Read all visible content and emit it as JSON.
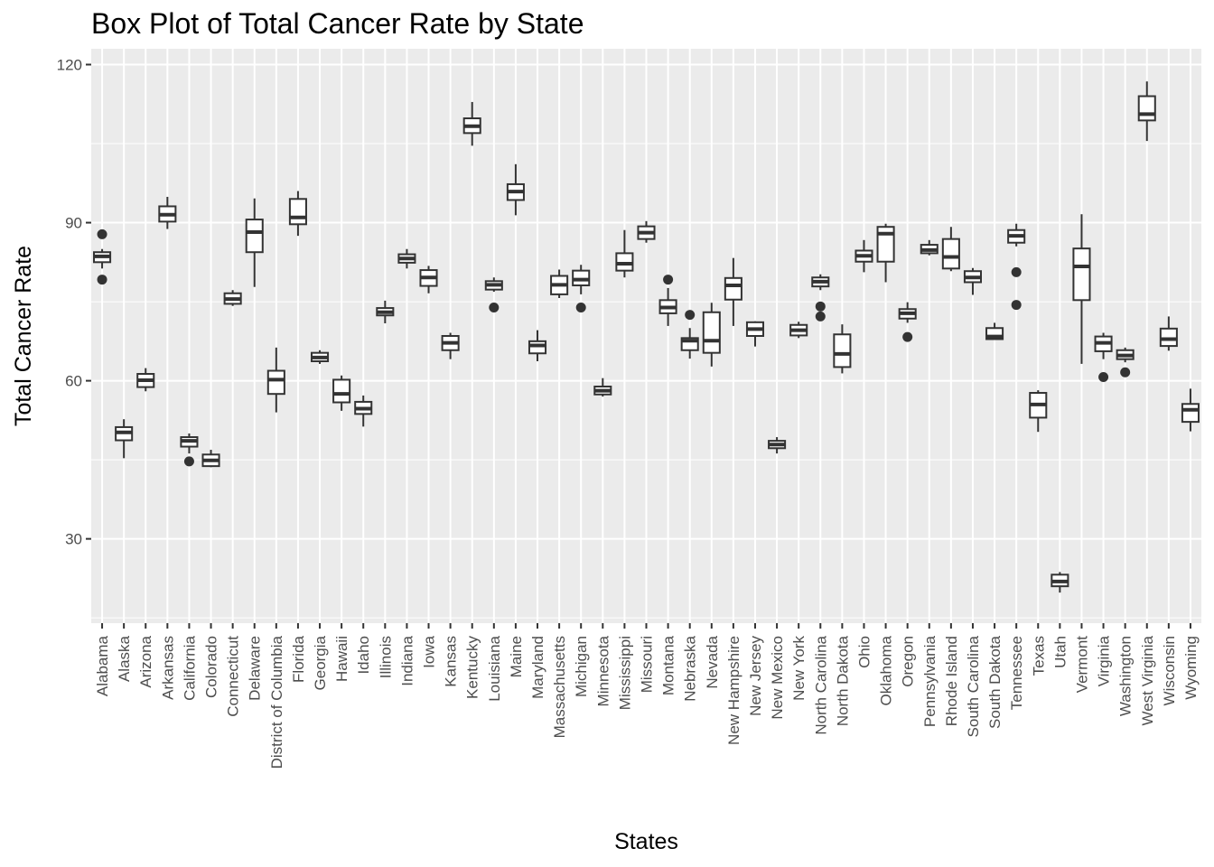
{
  "chart_data": {
    "type": "box",
    "title": "Box Plot of Total Cancer Rate by State",
    "xlabel": "States",
    "ylabel": "Total Cancer Rate",
    "ylim": [
      14,
      123
    ],
    "yticks": [
      30,
      60,
      90,
      120
    ],
    "grid": true,
    "legend": "none",
    "colors": {
      "panel": "#ebebeb",
      "grid": "#ffffff",
      "box_fill": "#ffffff",
      "box_line": "#333333",
      "outlier": "#333333",
      "tick_text": "#4d4d4d"
    },
    "categories": [
      "Alabama",
      "Alaska",
      "Arizona",
      "Arkansas",
      "California",
      "Colorado",
      "Connecticut",
      "Delaware",
      "District of Columbia",
      "Florida",
      "Georgia",
      "Hawaii",
      "Idaho",
      "Illinois",
      "Indiana",
      "Iowa",
      "Kansas",
      "Kentucky",
      "Louisiana",
      "Maine",
      "Maryland",
      "Massachusetts",
      "Michigan",
      "Minnesota",
      "Mississippi",
      "Missouri",
      "Montana",
      "Nebraska",
      "Nevada",
      "New Hampshire",
      "New Jersey",
      "New Mexico",
      "New York",
      "North Carolina",
      "North Dakota",
      "Ohio",
      "Oklahoma",
      "Oregon",
      "Pennsylvania",
      "Rhode Island",
      "South Carolina",
      "South Dakota",
      "Tennessee",
      "Texas",
      "Utah",
      "Vermont",
      "Virginia",
      "Washington",
      "West Virginia",
      "Wisconsin",
      "Wyoming"
    ],
    "boxes": [
      {
        "min": 81.3,
        "q1": 82.5,
        "median": 83.6,
        "q3": 84.4,
        "max": 85.0,
        "outliers": [
          87.8,
          79.2
        ]
      },
      {
        "min": 45.3,
        "q1": 48.7,
        "median": 50.2,
        "q3": 51.2,
        "max": 52.7,
        "outliers": []
      },
      {
        "min": 58.0,
        "q1": 58.8,
        "median": 60.1,
        "q3": 61.3,
        "max": 62.4,
        "outliers": []
      },
      {
        "min": 88.8,
        "q1": 90.2,
        "median": 91.5,
        "q3": 93.1,
        "max": 94.9,
        "outliers": []
      },
      {
        "min": 46.2,
        "q1": 47.5,
        "median": 48.6,
        "q3": 49.3,
        "max": 50.0,
        "outliers": [
          44.7
        ]
      },
      {
        "min": 43.6,
        "q1": 43.8,
        "median": 44.9,
        "q3": 46.0,
        "max": 46.9,
        "outliers": []
      },
      {
        "min": 74.2,
        "q1": 74.6,
        "median": 75.5,
        "q3": 76.6,
        "max": 77.2,
        "outliers": []
      },
      {
        "min": 77.8,
        "q1": 84.4,
        "median": 88.2,
        "q3": 90.6,
        "max": 94.6,
        "outliers": []
      },
      {
        "min": 54.0,
        "q1": 57.5,
        "median": 60.2,
        "q3": 61.9,
        "max": 66.3,
        "outliers": []
      },
      {
        "min": 87.5,
        "q1": 89.7,
        "median": 91.0,
        "q3": 94.5,
        "max": 96.0,
        "outliers": []
      },
      {
        "min": 63.2,
        "q1": 63.7,
        "median": 64.4,
        "q3": 65.3,
        "max": 65.8,
        "outliers": []
      },
      {
        "min": 54.3,
        "q1": 55.9,
        "median": 57.5,
        "q3": 60.2,
        "max": 61.0,
        "outliers": []
      },
      {
        "min": 51.3,
        "q1": 53.7,
        "median": 54.7,
        "q3": 56.0,
        "max": 57.2,
        "outliers": []
      },
      {
        "min": 70.9,
        "q1": 72.4,
        "median": 73.0,
        "q3": 73.8,
        "max": 75.2,
        "outliers": []
      },
      {
        "min": 81.3,
        "q1": 82.4,
        "median": 83.2,
        "q3": 84.0,
        "max": 85.0,
        "outliers": []
      },
      {
        "min": 76.6,
        "q1": 78.0,
        "median": 79.6,
        "q3": 81.0,
        "max": 81.8,
        "outliers": []
      },
      {
        "min": 64.1,
        "q1": 65.8,
        "median": 67.2,
        "q3": 68.5,
        "max": 69.1,
        "outliers": []
      },
      {
        "min": 104.6,
        "q1": 107.0,
        "median": 108.3,
        "q3": 109.8,
        "max": 112.9,
        "outliers": []
      },
      {
        "min": 76.9,
        "q1": 77.3,
        "median": 78.2,
        "q3": 78.9,
        "max": 79.6,
        "outliers": [
          73.9
        ]
      },
      {
        "min": 91.4,
        "q1": 94.3,
        "median": 95.9,
        "q3": 97.3,
        "max": 101.1,
        "outliers": []
      },
      {
        "min": 63.7,
        "q1": 65.2,
        "median": 66.7,
        "q3": 67.5,
        "max": 69.6,
        "outliers": []
      },
      {
        "min": 75.7,
        "q1": 76.4,
        "median": 78.2,
        "q3": 79.9,
        "max": 81.1,
        "outliers": []
      },
      {
        "min": 76.4,
        "q1": 78.1,
        "median": 79.2,
        "q3": 80.9,
        "max": 82.0,
        "outliers": [
          73.9
        ]
      },
      {
        "min": 57.0,
        "q1": 57.4,
        "median": 58.1,
        "q3": 58.9,
        "max": 60.5,
        "outliers": []
      },
      {
        "min": 79.6,
        "q1": 80.9,
        "median": 82.2,
        "q3": 84.2,
        "max": 88.6,
        "outliers": []
      },
      {
        "min": 86.2,
        "q1": 86.9,
        "median": 88.1,
        "q3": 89.3,
        "max": 90.3,
        "outliers": []
      },
      {
        "min": 70.4,
        "q1": 72.8,
        "median": 73.9,
        "q3": 75.3,
        "max": 77.6,
        "outliers": [
          79.2
        ]
      },
      {
        "min": 64.2,
        "q1": 65.8,
        "median": 67.6,
        "q3": 68.1,
        "max": 70.0,
        "outliers": [
          72.5
        ]
      },
      {
        "min": 62.7,
        "q1": 65.3,
        "median": 67.6,
        "q3": 73.0,
        "max": 74.8,
        "outliers": []
      },
      {
        "min": 70.4,
        "q1": 75.4,
        "median": 78.1,
        "q3": 79.5,
        "max": 83.3,
        "outliers": []
      },
      {
        "min": 66.5,
        "q1": 68.5,
        "median": 69.8,
        "q3": 71.1,
        "max": 71.3,
        "outliers": []
      },
      {
        "min": 46.2,
        "q1": 47.2,
        "median": 47.9,
        "q3": 48.6,
        "max": 49.3,
        "outliers": []
      },
      {
        "min": 68.1,
        "q1": 68.6,
        "median": 69.6,
        "q3": 70.6,
        "max": 71.2,
        "outliers": []
      },
      {
        "min": 77.2,
        "q1": 77.9,
        "median": 78.8,
        "q3": 79.6,
        "max": 80.2,
        "outliers": [
          74.1,
          72.2
        ]
      },
      {
        "min": 61.4,
        "q1": 62.6,
        "median": 65.1,
        "q3": 68.8,
        "max": 70.7,
        "outliers": []
      },
      {
        "min": 80.6,
        "q1": 82.6,
        "median": 83.7,
        "q3": 84.7,
        "max": 86.7,
        "outliers": []
      },
      {
        "min": 78.7,
        "q1": 82.6,
        "median": 87.9,
        "q3": 89.2,
        "max": 89.8,
        "outliers": []
      },
      {
        "min": 71.0,
        "q1": 71.8,
        "median": 72.8,
        "q3": 73.6,
        "max": 74.9,
        "outliers": [
          68.3
        ]
      },
      {
        "min": 83.8,
        "q1": 84.2,
        "median": 84.8,
        "q3": 85.8,
        "max": 86.7,
        "outliers": []
      },
      {
        "min": 80.8,
        "q1": 81.3,
        "median": 83.5,
        "q3": 86.9,
        "max": 89.2,
        "outliers": []
      },
      {
        "min": 76.3,
        "q1": 78.7,
        "median": 79.6,
        "q3": 80.8,
        "max": 81.4,
        "outliers": []
      },
      {
        "min": 67.9,
        "q1": 67.9,
        "median": 68.4,
        "q3": 70.0,
        "max": 71.0,
        "outliers": []
      },
      {
        "min": 85.5,
        "q1": 86.2,
        "median": 87.5,
        "q3": 88.6,
        "max": 89.8,
        "outliers": [
          80.6,
          74.4
        ]
      },
      {
        "min": 50.3,
        "q1": 53.0,
        "median": 55.5,
        "q3": 57.7,
        "max": 58.2,
        "outliers": []
      },
      {
        "min": 19.8,
        "q1": 21.0,
        "median": 21.9,
        "q3": 23.2,
        "max": 23.7,
        "outliers": []
      },
      {
        "min": 63.2,
        "q1": 75.3,
        "median": 81.7,
        "q3": 85.1,
        "max": 91.6,
        "outliers": []
      },
      {
        "min": 64.1,
        "q1": 65.6,
        "median": 67.2,
        "q3": 68.4,
        "max": 69.1,
        "outliers": [
          60.7
        ]
      },
      {
        "min": 63.5,
        "q1": 64.1,
        "median": 64.8,
        "q3": 65.8,
        "max": 66.3,
        "outliers": [
          61.6
        ]
      },
      {
        "min": 105.5,
        "q1": 109.4,
        "median": 110.6,
        "q3": 114.0,
        "max": 116.8,
        "outliers": []
      },
      {
        "min": 65.7,
        "q1": 66.6,
        "median": 67.9,
        "q3": 69.9,
        "max": 72.2,
        "outliers": []
      },
      {
        "min": 50.4,
        "q1": 52.2,
        "median": 54.5,
        "q3": 55.6,
        "max": 58.5,
        "outliers": []
      }
    ]
  }
}
